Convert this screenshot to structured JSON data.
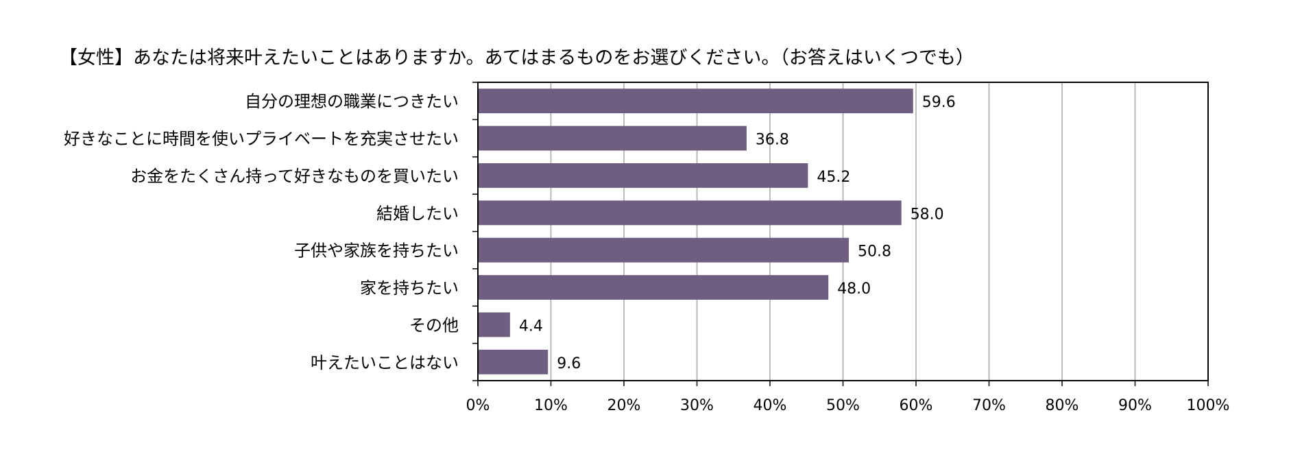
{
  "chart_data": {
    "type": "bar",
    "orientation": "horizontal",
    "title": "【女性】あなたは将来叶えたいことはありますか。あてはまるものをお選びください。（お答えはいくつでも）",
    "categories": [
      "自分の理想の職業につきたい",
      "好きなことに時間を使いプライベートを充実させたい",
      "お金をたくさん持って好きなものを買いたい",
      "結婚したい",
      "子供や家族を持ちたい",
      "家を持ちたい",
      "その他",
      "叶えたいことはない"
    ],
    "values": [
      59.6,
      36.8,
      45.2,
      58.0,
      50.8,
      48.0,
      4.4,
      9.6
    ],
    "value_labels": [
      "59.6",
      "36.8",
      "45.2",
      "58.0",
      "50.8",
      "48.0",
      "4.4",
      "9.6"
    ],
    "xlim": [
      0,
      100
    ],
    "x_ticks": [
      0,
      10,
      20,
      30,
      40,
      50,
      60,
      70,
      80,
      90,
      100
    ],
    "x_tick_labels": [
      "0%",
      "10%",
      "20%",
      "30%",
      "40%",
      "50%",
      "60%",
      "70%",
      "80%",
      "90%",
      "100%"
    ],
    "grid": true,
    "legend": "none",
    "bar_color": "#6e5f80"
  }
}
